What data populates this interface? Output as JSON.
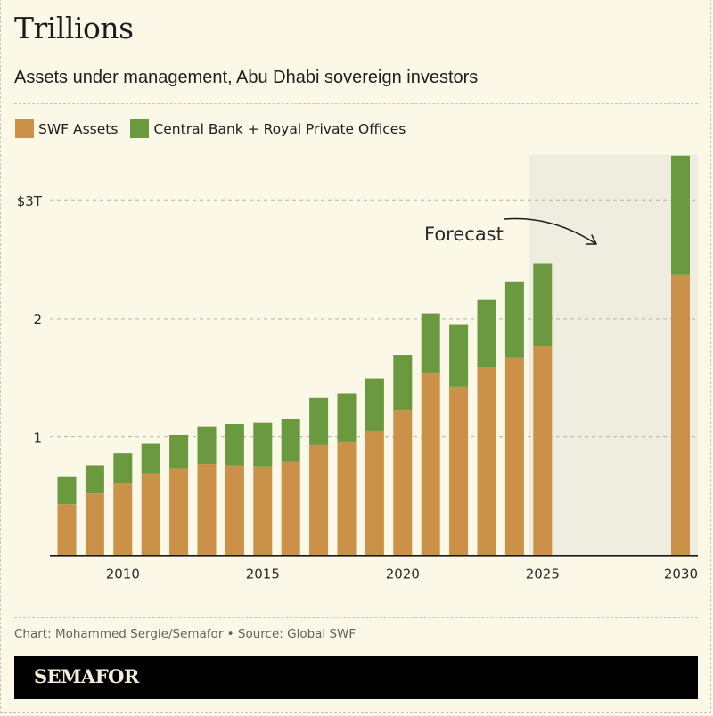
{
  "title": "Trillions",
  "subtitle": "Assets under management, Abu Dhabi sovereign investors",
  "legend": [
    {
      "label": "SWF Assets",
      "color": "#cc9149"
    },
    {
      "label": "Central Bank + Royal Private Offices",
      "color": "#6a993f"
    }
  ],
  "credit": "Chart: Mohammed Sergie/Semafor • Source: Global SWF",
  "brand": "SEMAFOR",
  "colors": {
    "background": "#fbf8e8",
    "forecast_shade": "#efeddf",
    "swf": "#cc9149",
    "central_bank": "#6a993f",
    "grid": "#b5b2a4",
    "axis": "#1a1a1a"
  },
  "chart_data": {
    "type": "bar",
    "stacked": true,
    "title": "Trillions",
    "subtitle": "Assets under management, Abu Dhabi sovereign investors",
    "xlabel": "",
    "ylabel": "",
    "ylim": [
      0,
      3.38
    ],
    "yticks": [
      {
        "value": 1,
        "label": "1"
      },
      {
        "value": 2,
        "label": "2"
      },
      {
        "value": 3,
        "label": "$3T"
      }
    ],
    "grid": true,
    "legend_position": "top-left",
    "x": [
      2008,
      2009,
      2010,
      2011,
      2012,
      2013,
      2014,
      2015,
      2016,
      2017,
      2018,
      2019,
      2020,
      2021,
      2022,
      2023,
      2024,
      2025,
      2030
    ],
    "xticks": [
      {
        "value": 2010,
        "label": "2010"
      },
      {
        "value": 2015,
        "label": "2015"
      },
      {
        "value": 2020,
        "label": "2020"
      },
      {
        "value": 2025,
        "label": "2025"
      },
      {
        "value": 2030,
        "label": "2030"
      }
    ],
    "series": [
      {
        "name": "SWF Assets",
        "color": "#cc9149",
        "values": [
          0.43,
          0.52,
          0.61,
          0.69,
          0.73,
          0.77,
          0.76,
          0.75,
          0.79,
          0.93,
          0.96,
          1.05,
          1.23,
          1.54,
          1.42,
          1.59,
          1.67,
          1.77,
          2.37
        ]
      },
      {
        "name": "Central Bank + Royal Private Offices",
        "color": "#6a993f",
        "values": [
          0.23,
          0.24,
          0.25,
          0.25,
          0.29,
          0.32,
          0.35,
          0.37,
          0.36,
          0.4,
          0.41,
          0.44,
          0.46,
          0.5,
          0.53,
          0.57,
          0.64,
          0.7,
          1.01
        ]
      }
    ],
    "annotations": [
      {
        "text": "Forecast",
        "region": {
          "x_from": 2025,
          "x_to": 2030
        }
      }
    ]
  }
}
